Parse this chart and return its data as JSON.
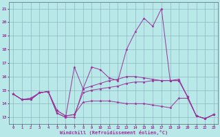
{
  "xlabel": "Windchill (Refroidissement éolien,°C)",
  "xlim": [
    -0.5,
    23.5
  ],
  "ylim": [
    12.5,
    21.5
  ],
  "yticks": [
    13,
    14,
    15,
    16,
    17,
    18,
    19,
    20,
    21
  ],
  "xticks": [
    0,
    1,
    2,
    3,
    4,
    5,
    6,
    7,
    8,
    9,
    10,
    11,
    12,
    13,
    14,
    15,
    16,
    17,
    18,
    19,
    20,
    21,
    22,
    23
  ],
  "bg_color": "#b8e8e8",
  "line_color": "#993399",
  "grid_color": "#88aabb",
  "series": [
    [
      14.7,
      14.3,
      14.3,
      14.8,
      14.9,
      13.3,
      13.0,
      13.0,
      15.1,
      16.7,
      16.5,
      15.9,
      15.7,
      18.0,
      19.3,
      20.3,
      19.7,
      21.0,
      15.7,
      15.7,
      14.5,
      13.1,
      12.9,
      13.2
    ],
    [
      14.7,
      14.3,
      14.3,
      14.8,
      14.9,
      13.3,
      13.0,
      16.7,
      15.1,
      15.3,
      15.5,
      15.7,
      15.8,
      16.0,
      16.0,
      15.9,
      15.8,
      15.7,
      15.7,
      15.7,
      14.5,
      13.1,
      12.9,
      13.2
    ],
    [
      14.7,
      14.3,
      14.4,
      14.8,
      14.9,
      13.5,
      13.1,
      13.2,
      14.8,
      15.0,
      15.1,
      15.2,
      15.3,
      15.5,
      15.6,
      15.6,
      15.7,
      15.7,
      15.7,
      15.8,
      14.5,
      13.1,
      12.9,
      13.2
    ],
    [
      14.7,
      14.3,
      14.4,
      14.8,
      14.9,
      13.5,
      13.1,
      13.2,
      14.1,
      14.2,
      14.2,
      14.2,
      14.1,
      14.0,
      14.0,
      14.0,
      13.9,
      13.8,
      13.7,
      14.4,
      14.4,
      13.1,
      12.9,
      13.2
    ]
  ]
}
